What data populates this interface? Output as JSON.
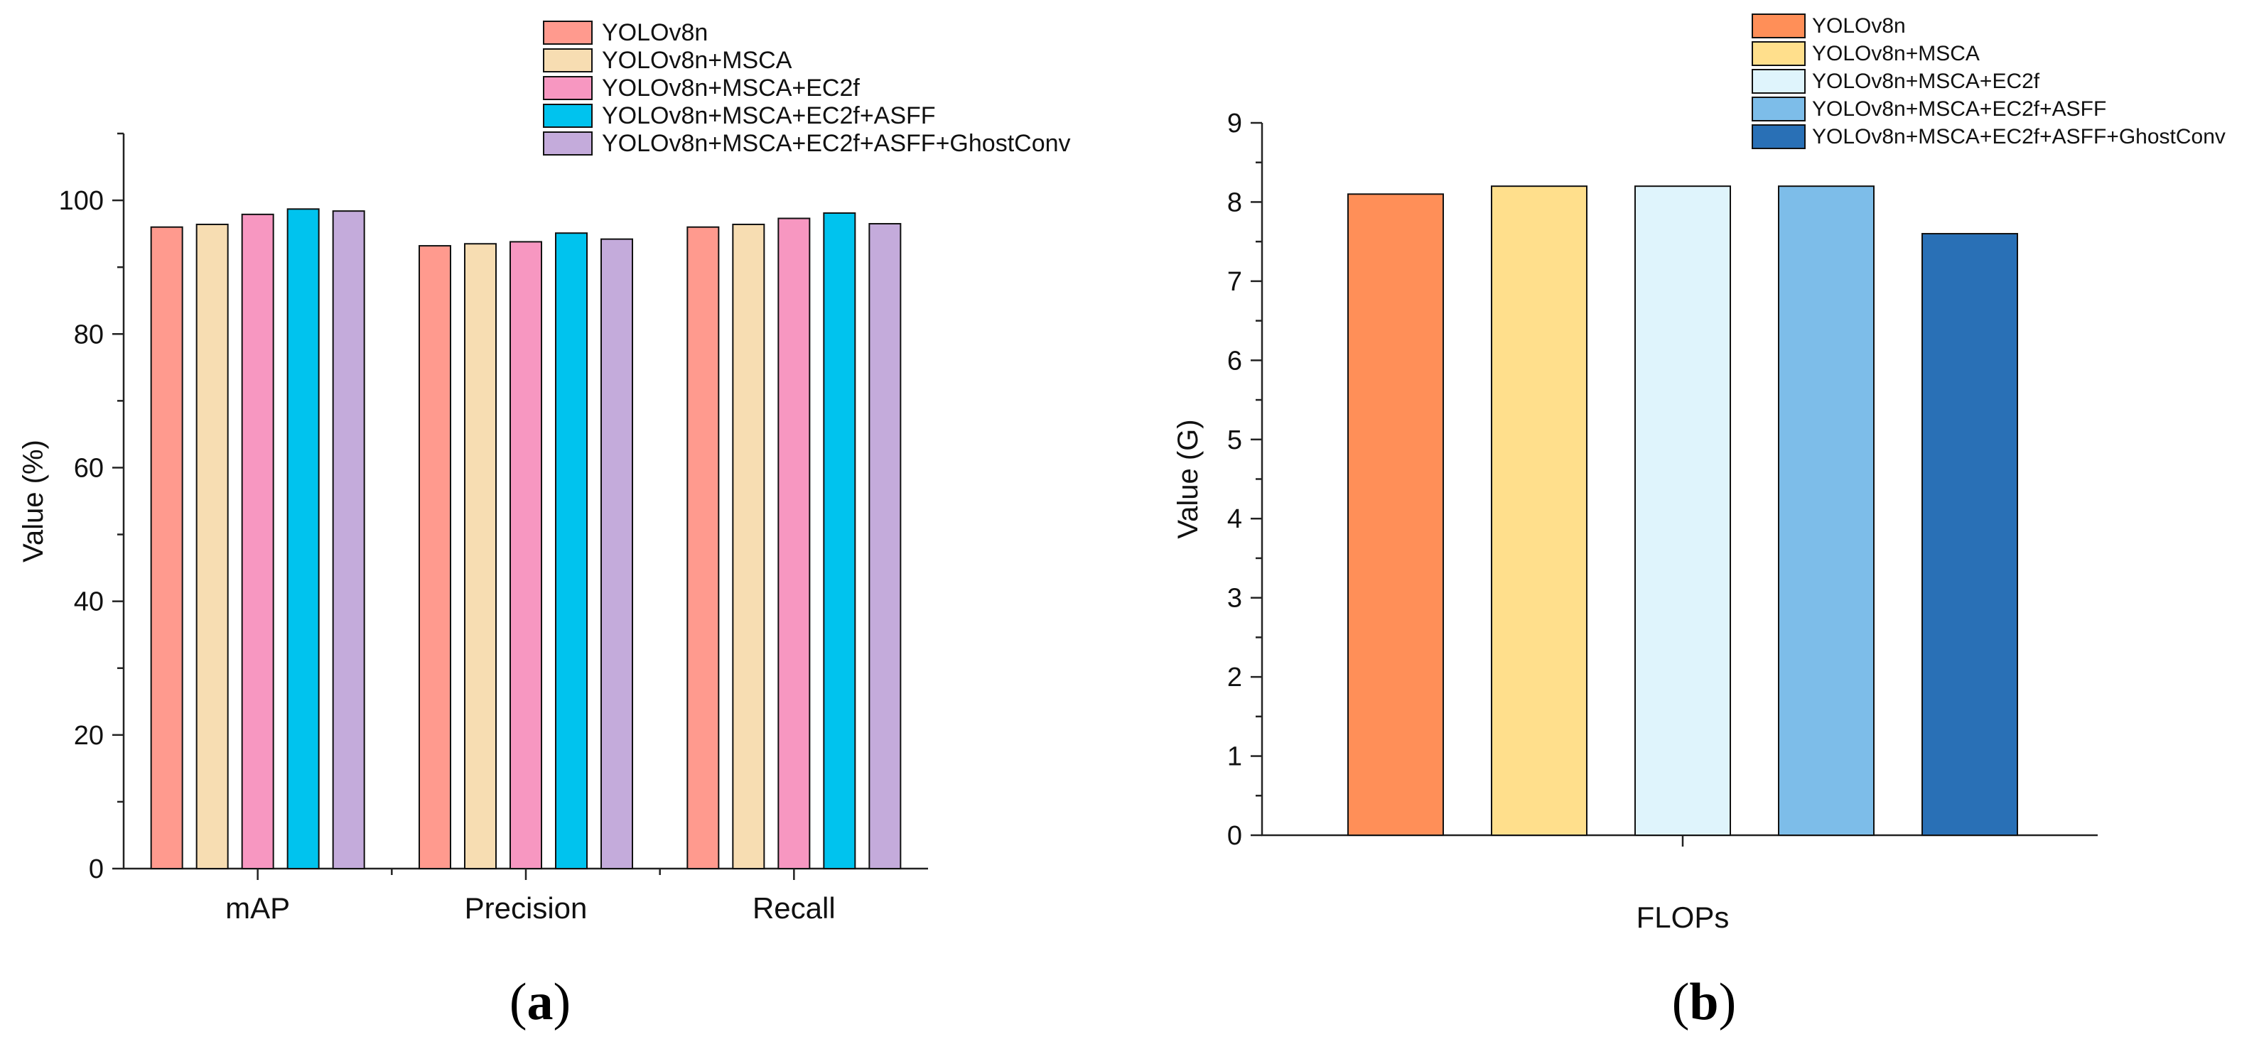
{
  "chart_data": [
    {
      "type": "bar",
      "panel_label": "a",
      "title": "",
      "xlabel": "",
      "ylabel": "Value (%)",
      "ylim": [
        0,
        110
      ],
      "yticks": [
        0,
        20,
        40,
        60,
        80,
        100
      ],
      "categories": [
        "mAP",
        "Precision",
        "Recall"
      ],
      "legend_position": "top-right",
      "series": [
        {
          "name": "YOLOv8n",
          "color": "#FF9A8E",
          "values": [
            96.0,
            93.2,
            96.0
          ]
        },
        {
          "name": "YOLOv8n+MSCA",
          "color": "#F7DDB2",
          "values": [
            96.4,
            93.5,
            96.4
          ]
        },
        {
          "name": "YOLOv8n+MSCA+EC2f",
          "color": "#F797C1",
          "values": [
            97.9,
            93.8,
            97.3
          ]
        },
        {
          "name": "YOLOv8n+MSCA+EC2f+ASFF",
          "color": "#00C3EE",
          "values": [
            98.7,
            95.1,
            98.1
          ]
        },
        {
          "name": "YOLOv8n+MSCA+EC2f+ASFF+GhostConv",
          "color": "#C4ABDB",
          "values": [
            98.4,
            94.2,
            96.5
          ]
        }
      ]
    },
    {
      "type": "bar",
      "panel_label": "b",
      "title": "",
      "xlabel": "FLOPs",
      "ylabel": "Value (G)",
      "ylim": [
        0,
        9
      ],
      "yticks": [
        0,
        1,
        2,
        3,
        4,
        5,
        6,
        7,
        8,
        9
      ],
      "categories": [
        ""
      ],
      "legend_position": "top-right",
      "series": [
        {
          "name": "YOLOv8n",
          "color": "#FF8F58",
          "values": [
            8.1
          ]
        },
        {
          "name": "YOLOv8n+MSCA",
          "color": "#FFDF8C",
          "values": [
            8.2
          ]
        },
        {
          "name": "YOLOv8n+MSCA+EC2f",
          "color": "#DFF4FC",
          "values": [
            8.2
          ]
        },
        {
          "name": "YOLOv8n+MSCA+EC2f+ASFF",
          "color": "#7DBDE9",
          "values": [
            8.2
          ]
        },
        {
          "name": "YOLOv8n+MSCA+EC2f+ASFF+GhostConv",
          "color": "#2970B6",
          "values": [
            7.6
          ]
        }
      ]
    }
  ]
}
